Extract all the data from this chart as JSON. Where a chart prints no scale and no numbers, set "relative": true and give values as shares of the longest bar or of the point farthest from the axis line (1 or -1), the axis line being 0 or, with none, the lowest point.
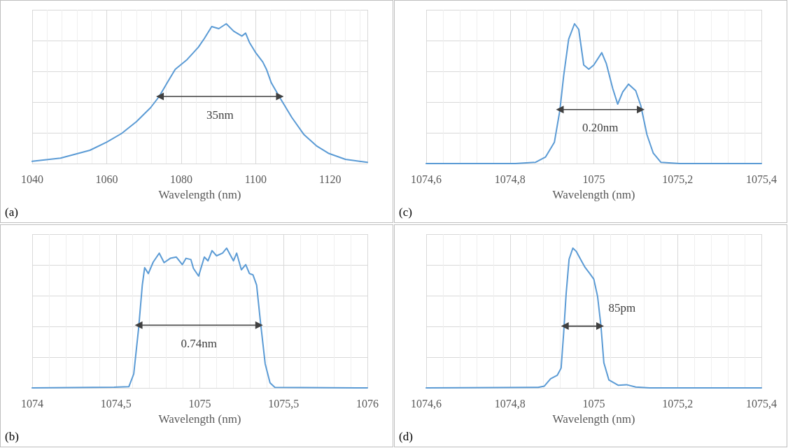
{
  "chart_data": [
    {
      "type": "line",
      "relative": true,
      "xlabel": "Wavelength (nm)",
      "xlim": [
        1040,
        1130
      ],
      "xticks": [
        1040,
        1060,
        1080,
        1100,
        1120
      ],
      "grid": true,
      "series": [
        {
          "color": "#5b9bd5",
          "x": [
            1040,
            1047.6,
            1055.5,
            1060,
            1064,
            1068,
            1071.8,
            1074.1,
            1076.4,
            1078.4,
            1081.6,
            1084.6,
            1086.2,
            1088.2,
            1090.1,
            1092.1,
            1094.1,
            1096.3,
            1097.3,
            1098.3,
            1099.9,
            1101.9,
            1102.9,
            1104.2,
            1106.5,
            1109.7,
            1113,
            1116.3,
            1119.5,
            1124.1,
            1130
          ],
          "values": [
            0.016,
            0.039,
            0.095,
            0.153,
            0.215,
            0.3,
            0.4,
            0.48,
            0.585,
            0.674,
            0.744,
            0.832,
            0.894,
            0.98,
            0.965,
            1.0,
            0.947,
            0.912,
            0.933,
            0.868,
            0.797,
            0.727,
            0.674,
            0.577,
            0.471,
            0.33,
            0.206,
            0.127,
            0.074,
            0.03,
            0.009
          ]
        },
        {
          "type": "line",
          "color": "#404040",
          "marker": "triangle",
          "x": [
            1074.3,
            1106.5
          ],
          "values": [
            0.48,
            0.48
          ]
        }
      ],
      "annotations": [
        "35nm",
        "(a)"
      ]
    },
    {
      "type": "line",
      "relative": true,
      "xlabel": "Wavelength (nm)",
      "xlim": [
        1074.6,
        1075.4
      ],
      "xticks": [
        {
          "value": 1074.6,
          "label": "1074,6"
        },
        {
          "value": 1074.8,
          "label": "1074,8"
        },
        1075,
        {
          "value": 1075.2,
          "label": "1075,2"
        },
        {
          "value": 1075.4,
          "label": "1075,4"
        }
      ],
      "grid": true,
      "series": [
        {
          "color": "#5b9bd5",
          "x": [
            1074.6,
            1074.813,
            1074.861,
            1074.885,
            1074.906,
            1074.919,
            1074.928,
            1074.94,
            1074.954,
            1074.964,
            1074.976,
            1074.988,
            1075.0,
            1075.019,
            1075.03,
            1075.045,
            1075.057,
            1075.069,
            1075.083,
            1075.1,
            1075.112,
            1075.127,
            1075.142,
            1075.16,
            1075.205,
            1075.4
          ],
          "values": [
            0,
            0,
            0.009,
            0.047,
            0.153,
            0.381,
            0.626,
            0.889,
            1.0,
            0.96,
            0.705,
            0.675,
            0.705,
            0.793,
            0.714,
            0.539,
            0.425,
            0.512,
            0.568,
            0.521,
            0.416,
            0.205,
            0.074,
            0.009,
            0,
            0
          ]
        },
        {
          "type": "line",
          "color": "#404040",
          "marker": "triangle",
          "x": [
            1074.919,
            1075.112
          ],
          "values": [
            0.386,
            0.386
          ]
        }
      ],
      "annotations": [
        "0.20nm",
        "(c)"
      ]
    },
    {
      "type": "line",
      "relative": true,
      "xlabel": "Wavelength (nm)",
      "xlim": [
        1074,
        1076
      ],
      "xticks": [
        1074,
        {
          "value": 1074.5,
          "label": "1074,5"
        },
        1075,
        {
          "value": 1075.5,
          "label": "1075,5"
        },
        1076
      ],
      "grid": true,
      "series": [
        {
          "color": "#5b9bd5",
          "x": [
            1074,
            1074.489,
            1074.577,
            1074.606,
            1074.635,
            1074.657,
            1074.671,
            1074.693,
            1074.722,
            1074.758,
            1074.787,
            1074.824,
            1074.86,
            1074.896,
            1074.918,
            1074.947,
            1074.962,
            1074.993,
            1075.027,
            1075.049,
            1075.073,
            1075.1,
            1075.136,
            1075.16,
            1075.179,
            1075.201,
            1075.22,
            1075.248,
            1075.274,
            1075.296,
            1075.317,
            1075.339,
            1075.361,
            1075.39,
            1075.419,
            1075.448,
            1076
          ],
          "values": [
            0,
            0.005,
            0.009,
            0.1,
            0.427,
            0.736,
            0.86,
            0.818,
            0.9,
            0.964,
            0.896,
            0.927,
            0.936,
            0.882,
            0.927,
            0.918,
            0.855,
            0.8,
            0.936,
            0.909,
            0.982,
            0.945,
            0.964,
            1.0,
            0.958,
            0.909,
            0.964,
            0.845,
            0.882,
            0.818,
            0.809,
            0.736,
            0.482,
            0.173,
            0.036,
            0.004,
            0
          ]
        },
        {
          "type": "line",
          "color": "#404040",
          "marker": "triangle",
          "x": [
            1074.635,
            1075.354
          ],
          "values": [
            0.449,
            0.449
          ]
        }
      ],
      "annotations": [
        "0.74nm",
        "(b)"
      ]
    },
    {
      "type": "line",
      "relative": true,
      "xlabel": "Wavelength (nm)",
      "xlim": [
        1074.6,
        1075.4
      ],
      "xticks": [
        {
          "value": 1074.6,
          "label": "1074,6"
        },
        {
          "value": 1074.8,
          "label": "1074,8"
        },
        1075,
        {
          "value": 1075.2,
          "label": "1075,2"
        },
        {
          "value": 1075.4,
          "label": "1075,4"
        }
      ],
      "grid": true,
      "series": [
        {
          "color": "#5b9bd5",
          "x": [
            1074.6,
            1074.867,
            1074.882,
            1074.897,
            1074.913,
            1074.922,
            1074.928,
            1074.934,
            1074.941,
            1074.95,
            1074.958,
            1074.97,
            1074.979,
            1074.991,
            1075.0,
            1075.009,
            1075.017,
            1075.024,
            1075.036,
            1075.058,
            1075.078,
            1075.1,
            1075.133,
            1075.4
          ],
          "values": [
            0,
            0.004,
            0.013,
            0.066,
            0.091,
            0.142,
            0.389,
            0.674,
            0.92,
            1.0,
            0.977,
            0.911,
            0.863,
            0.816,
            0.778,
            0.655,
            0.446,
            0.18,
            0.057,
            0.019,
            0.023,
            0.006,
            0,
            0
          ]
        },
        {
          "type": "line",
          "color": "#404040",
          "marker": "triangle",
          "x": [
            1074.931,
            1075.015
          ],
          "values": [
            0.442,
            0.442
          ]
        }
      ],
      "annotations": [
        "85pm",
        "(d)"
      ]
    }
  ]
}
